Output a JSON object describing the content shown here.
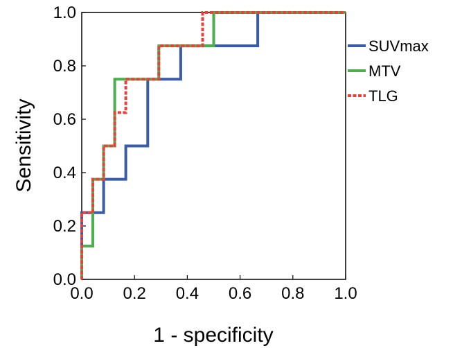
{
  "chart_data": {
    "type": "line",
    "title": "",
    "xlabel": "1 - specificity",
    "ylabel": "Sensitivity",
    "xlim": [
      0,
      1
    ],
    "ylim": [
      0,
      1
    ],
    "x_ticks": [
      "0.0",
      "0.2",
      "0.4",
      "0.6",
      "0.8",
      "1.0"
    ],
    "y_ticks": [
      "0.0",
      "0.2",
      "0.4",
      "0.6",
      "0.8",
      "1.0"
    ],
    "grid": false,
    "legend_position": "right",
    "series": [
      {
        "name": "SUVmax",
        "color": "#3a5ba8",
        "dash": "solid",
        "x": [
          0,
          0,
          0.083,
          0.083,
          0.167,
          0.167,
          0.25,
          0.25,
          0.375,
          0.375,
          0.5,
          0.5,
          0.667,
          0.667,
          1
        ],
        "y": [
          0,
          0.25,
          0.25,
          0.375,
          0.375,
          0.5,
          0.5,
          0.75,
          0.75,
          0.875,
          0.875,
          0.875,
          0.875,
          1,
          1
        ]
      },
      {
        "name": "MTV",
        "color": "#4cae4c",
        "dash": "solid",
        "x": [
          0,
          0,
          0.042,
          0.042,
          0.083,
          0.083,
          0.125,
          0.125,
          0.292,
          0.292,
          0.5,
          0.5,
          1
        ],
        "y": [
          0,
          0.125,
          0.125,
          0.375,
          0.375,
          0.5,
          0.5,
          0.75,
          0.75,
          0.875,
          0.875,
          1,
          1
        ]
      },
      {
        "name": "TLG",
        "color": "#e8413c",
        "dash": "dotted",
        "x": [
          0,
          0,
          0.042,
          0.042,
          0.083,
          0.083,
          0.125,
          0.125,
          0.167,
          0.167,
          0.292,
          0.292,
          0.458,
          0.458,
          1
        ],
        "y": [
          0,
          0.25,
          0.25,
          0.375,
          0.375,
          0.5,
          0.5,
          0.625,
          0.625,
          0.75,
          0.75,
          0.875,
          0.875,
          1,
          1
        ]
      }
    ]
  }
}
